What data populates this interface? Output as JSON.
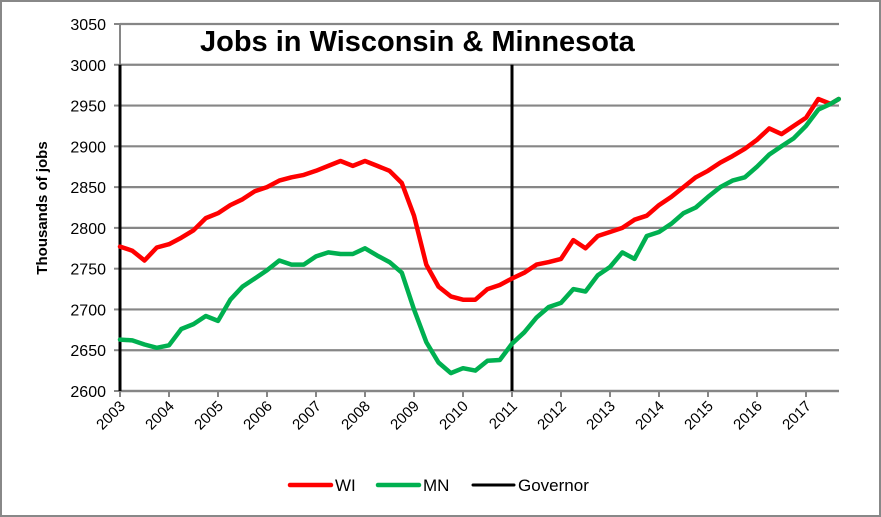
{
  "chart_data": {
    "type": "line",
    "title": "Jobs in Wisconsin & Minnesota",
    "xlabel": "",
    "ylabel": "Thousands of jobs",
    "ylim": [
      2600,
      3050
    ],
    "yticks": [
      2600,
      2650,
      2700,
      2750,
      2800,
      2850,
      2900,
      2950,
      3000,
      3050
    ],
    "xlim": [
      2003,
      2017.75
    ],
    "xticks": [
      "2003",
      "2004",
      "2005",
      "2006",
      "2007",
      "2008",
      "2009",
      "2010",
      "2011",
      "2012",
      "2013",
      "2014",
      "2015",
      "2016",
      "2017"
    ],
    "grid": true,
    "legend_position": "bottom",
    "series": [
      {
        "name": "WI",
        "color": "#ff0000",
        "x": [
          2003.0,
          2003.25,
          2003.5,
          2003.75,
          2004.0,
          2004.25,
          2004.5,
          2004.75,
          2005.0,
          2005.25,
          2005.5,
          2005.75,
          2006.0,
          2006.25,
          2006.5,
          2006.75,
          2007.0,
          2007.25,
          2007.5,
          2007.75,
          2008.0,
          2008.25,
          2008.5,
          2008.75,
          2009.0,
          2009.25,
          2009.5,
          2009.75,
          2010.0,
          2010.25,
          2010.5,
          2010.75,
          2011.0,
          2011.25,
          2011.5,
          2011.75,
          2012.0,
          2012.25,
          2012.5,
          2012.75,
          2013.0,
          2013.25,
          2013.5,
          2013.75,
          2014.0,
          2014.25,
          2014.5,
          2014.75,
          2015.0,
          2015.25,
          2015.5,
          2015.75,
          2016.0,
          2016.25,
          2016.5,
          2016.75,
          2017.0,
          2017.25,
          2017.5,
          2017.67
        ],
        "values": [
          2777,
          2772,
          2760,
          2776,
          2780,
          2788,
          2797,
          2812,
          2818,
          2828,
          2835,
          2845,
          2850,
          2858,
          2862,
          2865,
          2870,
          2876,
          2882,
          2876,
          2882,
          2876,
          2870,
          2855,
          2815,
          2755,
          2728,
          2716,
          2712,
          2712,
          2725,
          2730,
          2738,
          2745,
          2755,
          2758,
          2762,
          2785,
          2775,
          2790,
          2795,
          2800,
          2810,
          2815,
          2828,
          2838,
          2850,
          2862,
          2870,
          2880,
          2888,
          2897,
          2908,
          2922,
          2915,
          2925,
          2935,
          2958,
          2952,
          2958
        ]
      },
      {
        "name": "MN",
        "color": "#00b050",
        "x": [
          2003.0,
          2003.25,
          2003.5,
          2003.75,
          2004.0,
          2004.25,
          2004.5,
          2004.75,
          2005.0,
          2005.25,
          2005.5,
          2005.75,
          2006.0,
          2006.25,
          2006.5,
          2006.75,
          2007.0,
          2007.25,
          2007.5,
          2007.75,
          2008.0,
          2008.25,
          2008.5,
          2008.75,
          2009.0,
          2009.25,
          2009.5,
          2009.75,
          2010.0,
          2010.25,
          2010.5,
          2010.75,
          2011.0,
          2011.25,
          2011.5,
          2011.75,
          2012.0,
          2012.25,
          2012.5,
          2012.75,
          2013.0,
          2013.25,
          2013.5,
          2013.75,
          2014.0,
          2014.25,
          2014.5,
          2014.75,
          2015.0,
          2015.25,
          2015.5,
          2015.75,
          2016.0,
          2016.25,
          2016.5,
          2016.75,
          2017.0,
          2017.25,
          2017.5,
          2017.67
        ],
        "values": [
          2663,
          2662,
          2657,
          2653,
          2656,
          2676,
          2682,
          2692,
          2686,
          2712,
          2728,
          2738,
          2748,
          2760,
          2755,
          2755,
          2765,
          2770,
          2768,
          2768,
          2775,
          2766,
          2758,
          2745,
          2700,
          2660,
          2635,
          2622,
          2628,
          2625,
          2637,
          2638,
          2658,
          2672,
          2690,
          2703,
          2708,
          2725,
          2722,
          2742,
          2752,
          2770,
          2762,
          2790,
          2795,
          2805,
          2818,
          2825,
          2838,
          2850,
          2858,
          2862,
          2875,
          2890,
          2900,
          2910,
          2925,
          2945,
          2952,
          2958
        ]
      },
      {
        "name": "Governor",
        "color": "#000000",
        "type": "vertical-markers",
        "x": [
          2003.0,
          2011.0
        ],
        "y_range": [
          2600,
          3000
        ]
      }
    ]
  },
  "legend": {
    "items": [
      {
        "label": "WI",
        "color": "#ff0000"
      },
      {
        "label": "MN",
        "color": "#00b050"
      },
      {
        "label": "Governor",
        "color": "#000000"
      }
    ]
  }
}
